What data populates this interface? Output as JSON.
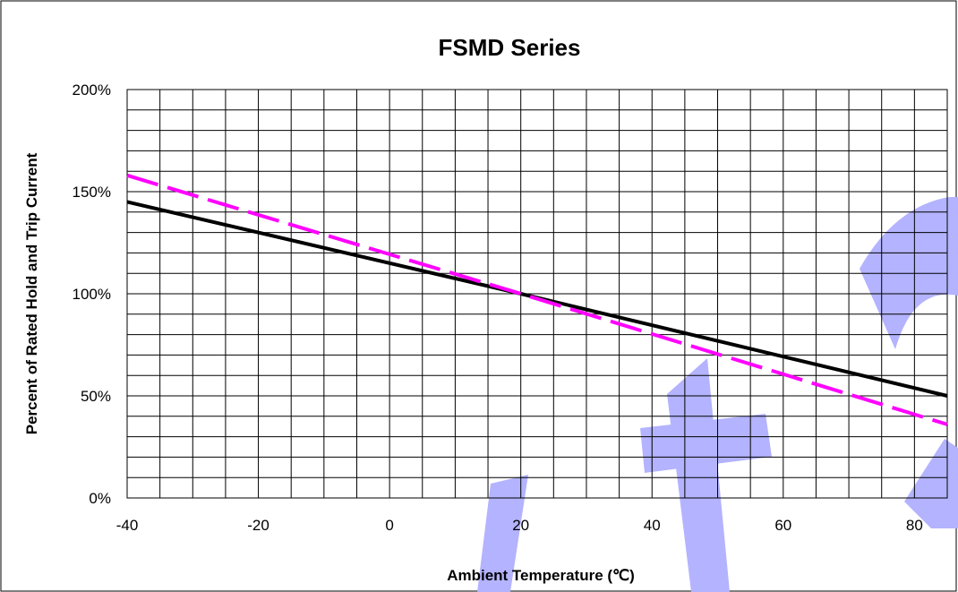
{
  "chart_data": {
    "type": "line",
    "title": "FSMD Series",
    "xlabel": "Ambient Temperature (℃)",
    "ylabel": "Percent of Rated Hold  and Trip Current",
    "xlim": [
      -40,
      85
    ],
    "ylim": [
      0,
      200
    ],
    "x_ticks": [
      -40,
      -20,
      0,
      20,
      40,
      60,
      80
    ],
    "x_tick_labels": [
      "-40",
      "-20",
      "0",
      "20",
      "40",
      "60",
      "80"
    ],
    "y_ticks": [
      0,
      50,
      100,
      150,
      200
    ],
    "y_tick_labels": [
      "0%",
      "50%",
      "100%",
      "150%",
      "200%"
    ],
    "grid": true,
    "legend": "none",
    "series": [
      {
        "style": "solid",
        "color": "#000000",
        "x": [
          -40,
          20,
          85
        ],
        "y": [
          145,
          100,
          50
        ]
      },
      {
        "style": "dashed",
        "color": "#ff00ff",
        "x": [
          -40,
          20,
          85
        ],
        "y": [
          158,
          100,
          36
        ]
      }
    ]
  },
  "colors": {
    "watermark": "#b3b3ff",
    "grid": "#000000"
  }
}
